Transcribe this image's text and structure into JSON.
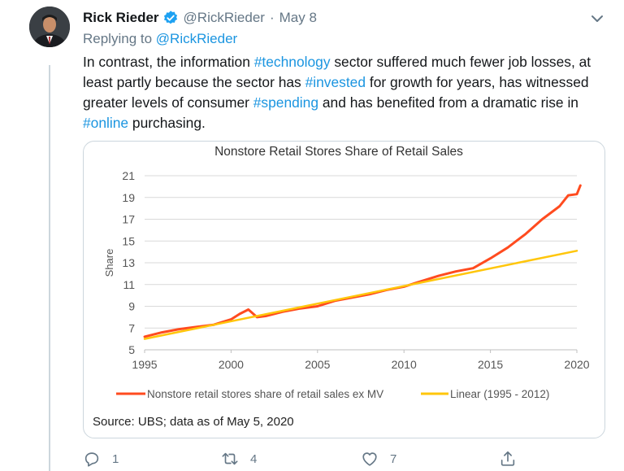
{
  "tweet": {
    "display_name": "Rick Rieder",
    "handle": "@RickRieder",
    "separator": "·",
    "date": "May 8",
    "replying_prefix": "Replying to",
    "replying_mention": "@RickRieder",
    "text": [
      {
        "t": "In contrast, the information ",
        "tag": false
      },
      {
        "t": "#technology",
        "tag": true
      },
      {
        "t": " sector suffered much fewer job losses, at least partly because the sector has ",
        "tag": false
      },
      {
        "t": "#invested",
        "tag": true
      },
      {
        "t": " for growth for years, has witnessed greater levels of consumer ",
        "tag": false
      },
      {
        "t": "#spending",
        "tag": true
      },
      {
        "t": " and has benefited from a dramatic rise in ",
        "tag": false
      },
      {
        "t": "#online",
        "tag": true
      },
      {
        "t": " purchasing.",
        "tag": false
      }
    ],
    "actions": {
      "replies": "1",
      "retweets": "4",
      "likes": "7"
    }
  },
  "colors": {
    "link": "#1b95e0",
    "verified": "#1da1f2",
    "muted": "#657786",
    "series_actual": "#ff4b1f",
    "series_linear": "#ffc60b"
  },
  "icons": {
    "verified": "verified-badge-icon",
    "caret": "chevron-down-icon",
    "reply": "reply-icon",
    "retweet": "retweet-icon",
    "like": "heart-icon",
    "share": "share-icon"
  },
  "chart_data": {
    "type": "line",
    "title": "Nonstore Retail Stores Share of Retail Sales",
    "ylabel": "Share",
    "xlabel": "",
    "xlim": [
      1995,
      2020
    ],
    "ylim": [
      5,
      21
    ],
    "x_ticks": [
      "1995",
      "2000",
      "2005",
      "2010",
      "2015",
      "2020"
    ],
    "y_ticks": [
      "5",
      "7",
      "9",
      "11",
      "13",
      "15",
      "17",
      "19",
      "21"
    ],
    "grid": true,
    "legend": "bottom",
    "source": "Source: UBS; data as of May 5, 2020",
    "series": [
      {
        "name": "Nonstore retail stores share of retail sales ex MV",
        "x": [
          1995,
          1996,
          1997,
          1998,
          1999,
          2000,
          2000.5,
          2001,
          2001.5,
          2002,
          2003,
          2004,
          2005,
          2006,
          2007,
          2008,
          2009,
          2010,
          2011,
          2012,
          2013,
          2014,
          2015,
          2016,
          2017,
          2018,
          2019,
          2019.5,
          2020,
          2020.2
        ],
        "y": [
          6.2,
          6.6,
          6.9,
          7.1,
          7.3,
          7.8,
          8.3,
          8.7,
          8.0,
          8.1,
          8.5,
          8.8,
          9.0,
          9.5,
          9.8,
          10.1,
          10.5,
          10.8,
          11.3,
          11.8,
          12.2,
          12.5,
          13.4,
          14.4,
          15.6,
          17.0,
          18.2,
          19.2,
          19.3,
          20.1
        ]
      },
      {
        "name": "Linear (1995 - 2012)",
        "x": [
          1995,
          2020
        ],
        "y": [
          6.0,
          14.1
        ]
      }
    ]
  }
}
